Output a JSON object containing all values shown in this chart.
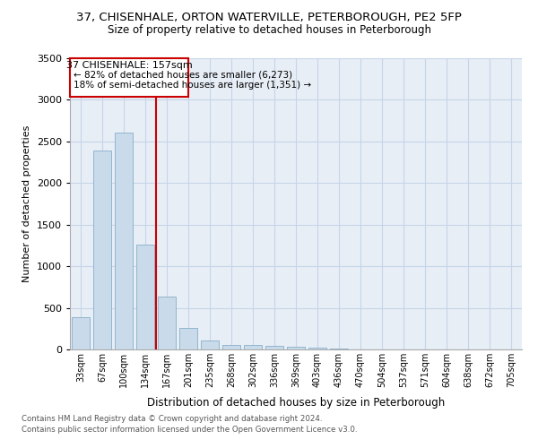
{
  "title_line1": "37, CHISENHALE, ORTON WATERVILLE, PETERBOROUGH, PE2 5FP",
  "title_line2": "Size of property relative to detached houses in Peterborough",
  "xlabel": "Distribution of detached houses by size in Peterborough",
  "ylabel": "Number of detached properties",
  "categories": [
    "33sqm",
    "67sqm",
    "100sqm",
    "134sqm",
    "167sqm",
    "201sqm",
    "235sqm",
    "268sqm",
    "302sqm",
    "336sqm",
    "369sqm",
    "403sqm",
    "436sqm",
    "470sqm",
    "504sqm",
    "537sqm",
    "571sqm",
    "604sqm",
    "638sqm",
    "672sqm",
    "705sqm"
  ],
  "values": [
    390,
    2390,
    2610,
    1255,
    640,
    260,
    110,
    55,
    50,
    45,
    30,
    18,
    6,
    3,
    2,
    1,
    1,
    0,
    0,
    0,
    0
  ],
  "bar_color": "#c9daea",
  "bar_edge_color": "#87aec8",
  "red_line_x": 3.5,
  "annotation_line_color": "#cc0000",
  "annotation_text_line1": "37 CHISENHALE: 157sqm",
  "annotation_text_line2": "← 82% of detached houses are smaller (6,273)",
  "annotation_text_line3": "18% of semi-detached houses are larger (1,351) →",
  "ylim": [
    0,
    3500
  ],
  "yticks": [
    0,
    500,
    1000,
    1500,
    2000,
    2500,
    3000,
    3500
  ],
  "grid_color": "#c5d5e8",
  "axes_bg_color": "#e8eef6",
  "footnote1": "Contains HM Land Registry data © Crown copyright and database right 2024.",
  "footnote2": "Contains public sector information licensed under the Open Government Licence v3.0."
}
